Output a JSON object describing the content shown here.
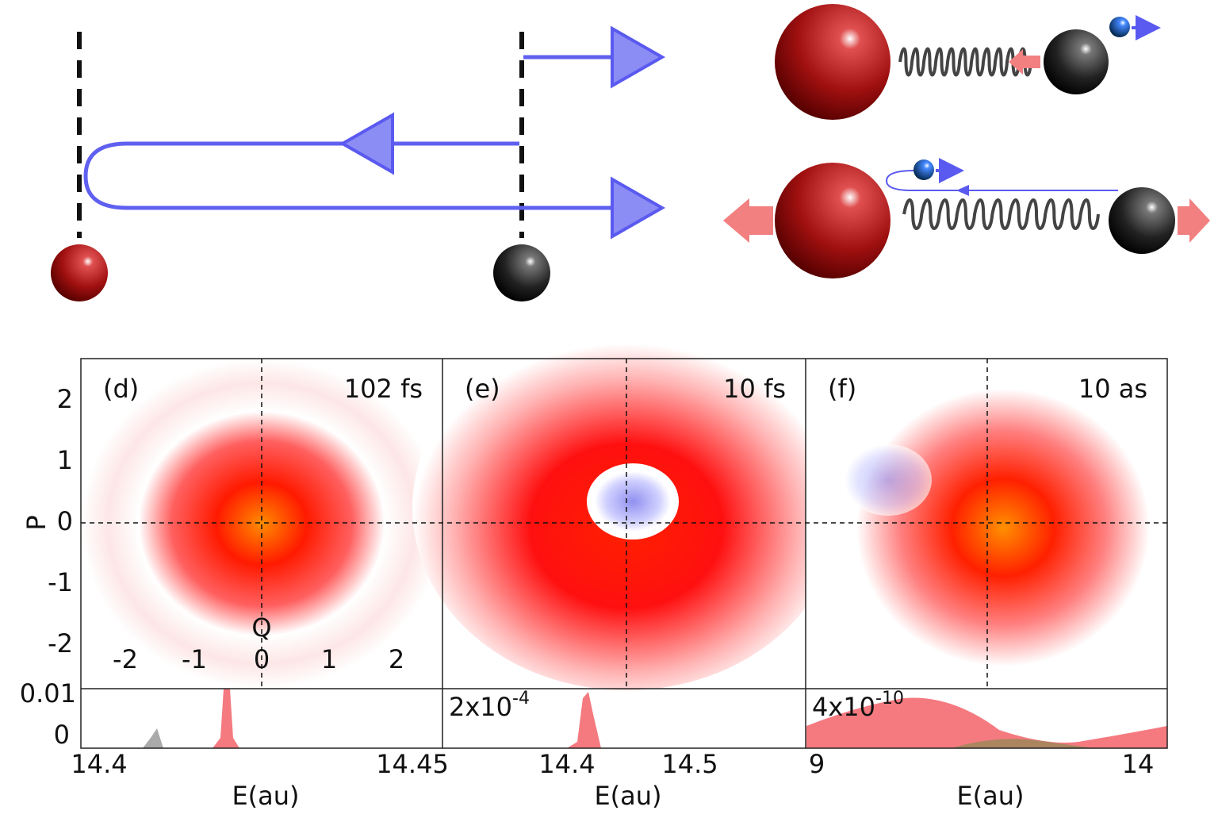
{
  "p_axis": {
    "label": "P",
    "ticks": [
      "2",
      "1",
      "0",
      "-1",
      "-2"
    ]
  },
  "q_axis": {
    "label": "Q",
    "ticks": [
      "-2",
      "-1",
      "0",
      "1",
      "2"
    ]
  },
  "panels": [
    {
      "label": "(d)",
      "time": "102 fs",
      "inset_scale": {
        "base": "0.01",
        "exp": ""
      },
      "inset_zero": "0",
      "x_ticks": [
        "14.4",
        "14.45"
      ],
      "x_label": "E(au)"
    },
    {
      "label": "(e)",
      "time": "10 fs",
      "inset_scale": {
        "base": "2x10",
        "exp": "-4"
      },
      "x_ticks": [
        "14.4",
        "14.5"
      ],
      "x_label": "E(au)"
    },
    {
      "label": "(f)",
      "time": "10 as",
      "inset_scale": {
        "base": "4x10",
        "exp": "-10"
      },
      "x_ticks": [
        "9",
        "14"
      ],
      "x_label": "E(au)"
    }
  ]
}
